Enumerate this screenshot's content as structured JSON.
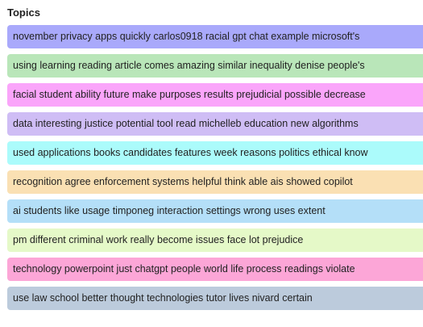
{
  "panel": {
    "title": "Topics"
  },
  "topics": [
    {
      "label": "november privacy apps quickly carlos0918 racial gpt chat example microsoft's",
      "color": "#a9a9fb"
    },
    {
      "label": "using learning reading article comes amazing similar inequality denise people's",
      "color": "#b9e6b9"
    },
    {
      "label": "facial student ability future make purposes results prejudicial possible decrease",
      "color": "#faa5fa"
    },
    {
      "label": "data interesting justice potential tool read michelleb education new algorithms",
      "color": "#cfbdf5"
    },
    {
      "label": "used applications books candidates features week reasons politics ethical know",
      "color": "#abfbfb"
    },
    {
      "label": "recognition agree enforcement systems helpful think able ais showed copilot",
      "color": "#fae0b3"
    },
    {
      "label": "ai students like usage timponeg interaction settings wrong uses extent",
      "color": "#b4dff8"
    },
    {
      "label": "pm different criminal work really become issues face lot prejudice",
      "color": "#e5f9c8"
    },
    {
      "label": "technology powerpoint just chatgpt people world life process readings violate",
      "color": "#fca6d7"
    },
    {
      "label": "use law school better thought technologies tutor lives nivard certain",
      "color": "#bccbdc"
    }
  ]
}
